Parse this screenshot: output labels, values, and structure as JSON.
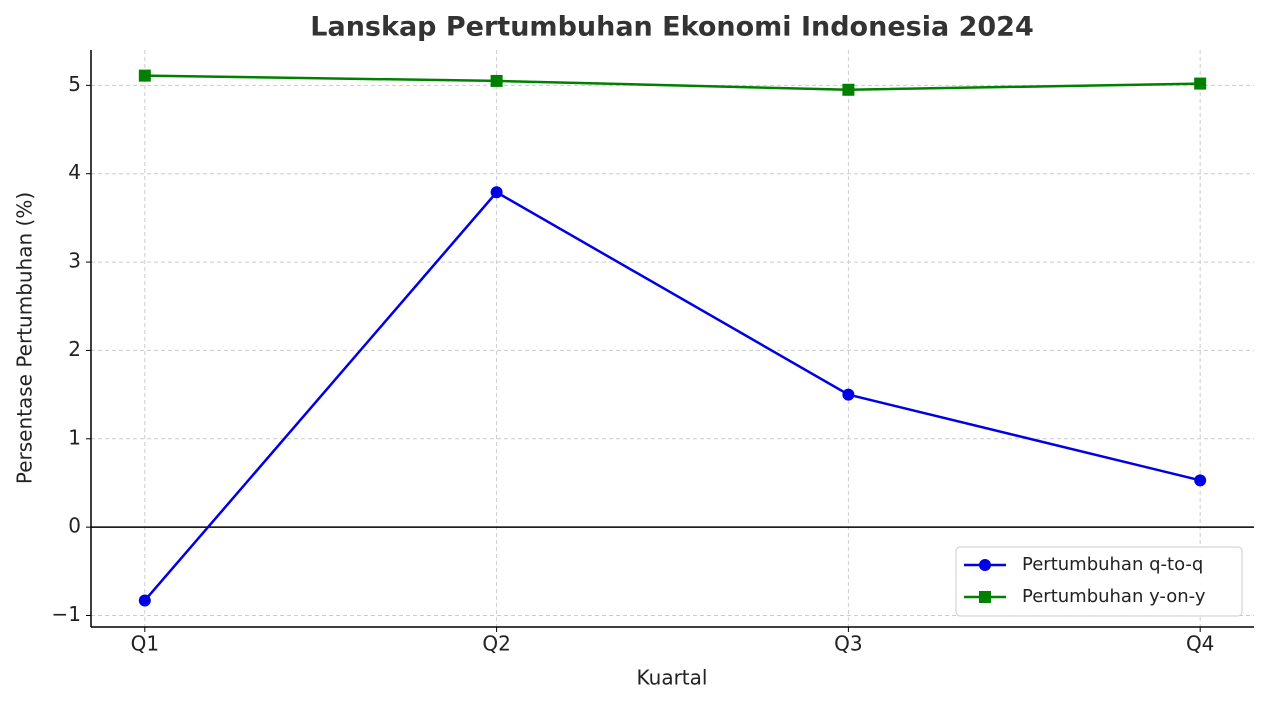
{
  "chart_data": {
    "type": "line",
    "title": "Lanskap Pertumbuhan Ekonomi Indonesia 2024",
    "x_label": "Kuartal",
    "y_label": "Persentase Pertumbuhan (%)",
    "categories": [
      "Q1",
      "Q2",
      "Q3",
      "Q4"
    ],
    "series": [
      {
        "name": "Pertumbuhan q-to-q",
        "color": "#0000e6",
        "marker": "circle",
        "values": [
          -0.83,
          3.79,
          1.5,
          0.53
        ]
      },
      {
        "name": "Pertumbuhan y-on-y",
        "color": "#008000",
        "marker": "square",
        "values": [
          5.11,
          5.05,
          4.95,
          5.02
        ]
      }
    ],
    "ylim": [
      -1.13,
      5.4
    ],
    "yticks": [
      {
        "value": -1,
        "label": "−1"
      },
      0,
      1,
      2,
      3,
      4,
      5
    ],
    "reference_line": 0,
    "grid": true,
    "legend": "lower-right"
  }
}
